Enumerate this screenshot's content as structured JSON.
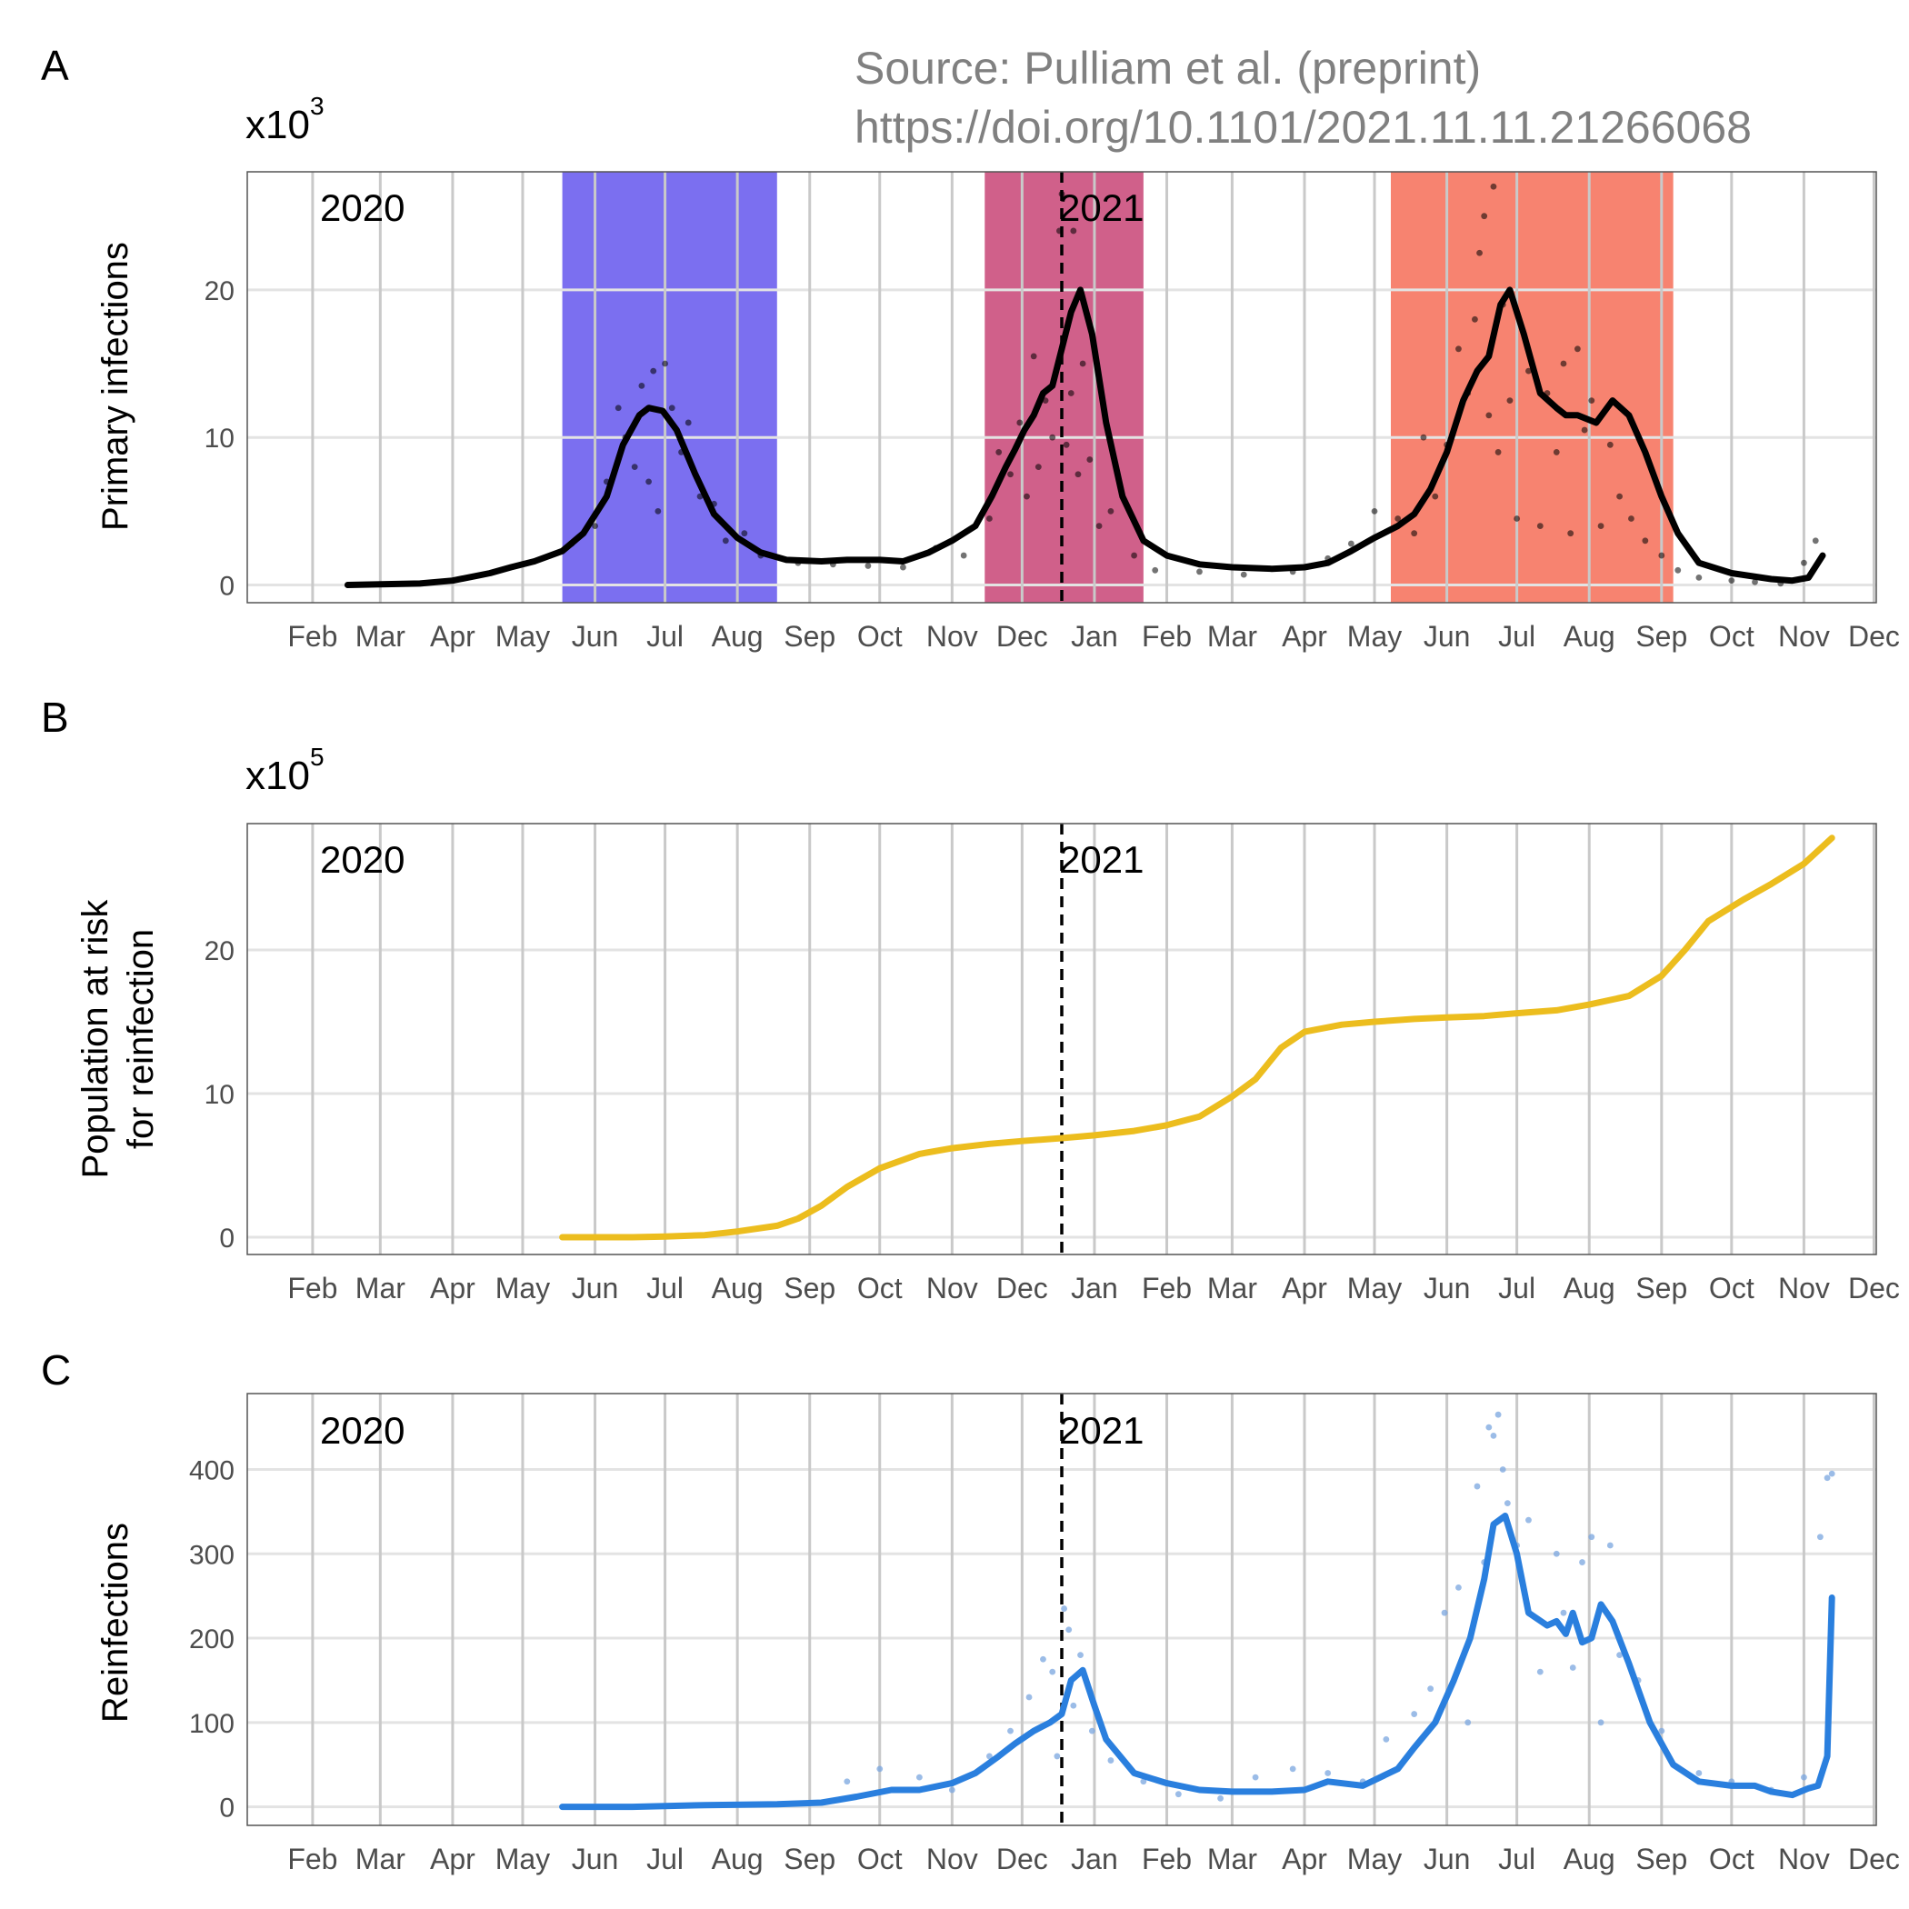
{
  "source": {
    "line1": "Source: Pulliam et al. (preprint)",
    "line2": "https://doi.org/10.1101/2021.11.11.21266068"
  },
  "year_labels": [
    "2020",
    "2021"
  ],
  "month_labels": [
    "Feb",
    "Mar",
    "Apr",
    "May",
    "Jun",
    "Jul",
    "Aug",
    "Sep",
    "Oct",
    "Nov",
    "Dec",
    "Jan",
    "Feb",
    "Mar",
    "Apr",
    "May",
    "Jun",
    "Jul",
    "Aug",
    "Sep",
    "Oct",
    "Nov",
    "Dec"
  ],
  "colors": {
    "wave1": "#7b6ff0",
    "wave2": "#d0608a",
    "wave3": "#f78370",
    "primary_line": "#000000",
    "at_risk_line": "#ecbd1e",
    "reinfection_line": "#2a7fde",
    "reinfection_points": "#7aa6df"
  },
  "chart_data": [
    {
      "panel": "A",
      "type": "line",
      "multiplier_base": "x10",
      "multiplier_exp": "3",
      "ylabel": "Primary infections",
      "xlim": [
        "2020-01-18",
        "2021-12-16"
      ],
      "ylim": [
        -1.2,
        28
      ],
      "yticks": [
        0,
        10,
        20
      ],
      "year_divider": "2021-01-01",
      "shaded_waves": [
        {
          "start": "2020-06-01",
          "end": "2020-09-01",
          "color": "#7b6ff0"
        },
        {
          "start": "2020-11-29",
          "end": "2021-02-05",
          "color": "#d0608a"
        },
        {
          "start": "2021-05-22",
          "end": "2021-09-20",
          "color": "#f78370"
        }
      ],
      "series": [
        {
          "style": "line",
          "x": [
            "2020-03-01",
            "2020-03-15",
            "2020-04-01",
            "2020-04-15",
            "2020-05-01",
            "2020-05-10",
            "2020-05-20",
            "2020-06-01",
            "2020-06-10",
            "2020-06-20",
            "2020-06-27",
            "2020-07-04",
            "2020-07-08",
            "2020-07-14",
            "2020-07-20",
            "2020-07-28",
            "2020-08-05",
            "2020-08-15",
            "2020-08-25",
            "2020-09-05",
            "2020-09-20",
            "2020-10-01",
            "2020-10-15",
            "2020-10-25",
            "2020-11-05",
            "2020-11-15",
            "2020-11-25",
            "2020-12-02",
            "2020-12-08",
            "2020-12-12",
            "2020-12-16",
            "2020-12-20",
            "2020-12-24",
            "2020-12-28",
            "2021-01-01",
            "2021-01-05",
            "2021-01-09",
            "2021-01-14",
            "2021-01-20",
            "2021-01-27",
            "2021-02-05",
            "2021-02-15",
            "2021-03-01",
            "2021-03-15",
            "2021-04-01",
            "2021-04-15",
            "2021-04-25",
            "2021-05-05",
            "2021-05-15",
            "2021-05-25",
            "2021-06-01",
            "2021-06-08",
            "2021-06-15",
            "2021-06-22",
            "2021-06-28",
            "2021-07-03",
            "2021-07-08",
            "2021-07-12",
            "2021-07-18",
            "2021-07-25",
            "2021-08-01",
            "2021-08-05",
            "2021-08-10",
            "2021-08-18",
            "2021-08-25",
            "2021-09-01",
            "2021-09-08",
            "2021-09-15",
            "2021-09-22",
            "2021-10-01",
            "2021-10-15",
            "2021-11-01",
            "2021-11-10",
            "2021-11-17",
            "2021-11-23"
          ],
          "y": [
            0.0,
            0.05,
            0.1,
            0.3,
            0.8,
            1.2,
            1.6,
            2.3,
            3.5,
            6.0,
            9.5,
            11.5,
            12.0,
            11.8,
            10.5,
            7.5,
            4.8,
            3.2,
            2.2,
            1.7,
            1.6,
            1.7,
            1.7,
            1.6,
            2.2,
            3.0,
            4.0,
            6.0,
            8.0,
            9.2,
            10.5,
            11.5,
            13.0,
            13.5,
            16.0,
            18.5,
            20.0,
            17.0,
            11.0,
            6.0,
            3.0,
            2.0,
            1.4,
            1.2,
            1.1,
            1.2,
            1.5,
            2.3,
            3.2,
            4.0,
            4.8,
            6.5,
            9.0,
            12.5,
            14.5,
            15.5,
            19.0,
            20.0,
            17.0,
            13.0,
            12.0,
            11.5,
            11.5,
            11.0,
            12.5,
            11.5,
            9.0,
            6.0,
            3.5,
            1.5,
            0.8,
            0.4,
            0.3,
            0.5,
            2.0
          ],
          "color": "#000000"
        },
        {
          "style": "points",
          "x": [
            "2020-05-20",
            "2020-06-05",
            "2020-06-15",
            "2020-06-20",
            "2020-06-25",
            "2020-06-28",
            "2020-07-02",
            "2020-07-05",
            "2020-07-08",
            "2020-07-10",
            "2020-07-12",
            "2020-07-15",
            "2020-07-18",
            "2020-07-22",
            "2020-07-25",
            "2020-07-30",
            "2020-08-05",
            "2020-08-10",
            "2020-08-18",
            "2020-08-25",
            "2020-09-10",
            "2020-09-25",
            "2020-10-10",
            "2020-10-25",
            "2020-11-08",
            "2020-11-20",
            "2020-12-01",
            "2020-12-05",
            "2020-12-10",
            "2020-12-14",
            "2020-12-17",
            "2020-12-20",
            "2020-12-22",
            "2020-12-25",
            "2020-12-28",
            "2020-12-31",
            "2021-01-01",
            "2021-01-03",
            "2021-01-05",
            "2021-01-06",
            "2021-01-08",
            "2021-01-10",
            "2021-01-13",
            "2021-01-17",
            "2021-01-22",
            "2021-02-01",
            "2021-02-10",
            "2021-03-01",
            "2021-03-20",
            "2021-04-10",
            "2021-04-25",
            "2021-05-05",
            "2021-05-15",
            "2021-05-25",
            "2021-06-01",
            "2021-06-05",
            "2021-06-10",
            "2021-06-15",
            "2021-06-20",
            "2021-06-24",
            "2021-06-27",
            "2021-06-29",
            "2021-07-01",
            "2021-07-03",
            "2021-07-05",
            "2021-07-07",
            "2021-07-09",
            "2021-07-12",
            "2021-07-15",
            "2021-07-20",
            "2021-07-25",
            "2021-07-28",
            "2021-08-01",
            "2021-08-04",
            "2021-08-07",
            "2021-08-10",
            "2021-08-13",
            "2021-08-16",
            "2021-08-20",
            "2021-08-24",
            "2021-08-28",
            "2021-09-02",
            "2021-09-08",
            "2021-09-15",
            "2021-09-22",
            "2021-10-01",
            "2021-10-15",
            "2021-10-25",
            "2021-11-05",
            "2021-11-15",
            "2021-11-20"
          ],
          "y": [
            1.6,
            2.8,
            4.0,
            7.0,
            12.0,
            10.0,
            8.0,
            13.5,
            7.0,
            14.5,
            5.0,
            15.0,
            12.0,
            9.0,
            11.0,
            6.0,
            5.5,
            3.0,
            3.5,
            2.0,
            1.5,
            1.4,
            1.3,
            1.2,
            2.5,
            2.0,
            4.5,
            9.0,
            7.5,
            11.0,
            6.0,
            15.5,
            8.0,
            12.5,
            10.0,
            24.0,
            26.5,
            9.5,
            13.0,
            24.0,
            7.5,
            15.0,
            8.5,
            4.0,
            5.0,
            2.0,
            1.0,
            0.9,
            0.7,
            0.9,
            1.8,
            2.8,
            5.0,
            4.5,
            3.5,
            10.0,
            6.0,
            9.5,
            16.0,
            13.0,
            18.0,
            22.5,
            25.0,
            11.5,
            27.0,
            9.0,
            19.0,
            12.5,
            4.5,
            14.5,
            4.0,
            13.0,
            9.0,
            15.0,
            3.5,
            16.0,
            10.5,
            12.5,
            4.0,
            9.5,
            6.0,
            4.5,
            3.0,
            2.0,
            1.0,
            0.5,
            0.3,
            0.2,
            0.1,
            1.5,
            3.0
          ],
          "color": "#000000"
        }
      ]
    },
    {
      "panel": "B",
      "type": "line",
      "multiplier_base": "x10",
      "multiplier_exp": "5",
      "ylabel_line1": "Population at risk",
      "ylabel_line2": "for reinfection",
      "xlim": [
        "2020-01-18",
        "2021-12-16"
      ],
      "ylim": [
        -1.2,
        28.8
      ],
      "yticks": [
        0,
        10,
        20
      ],
      "year_divider": "2021-01-01",
      "series": [
        {
          "style": "line",
          "x": [
            "2020-06-01",
            "2020-07-01",
            "2020-07-15",
            "2020-08-01",
            "2020-08-15",
            "2020-09-01",
            "2020-09-10",
            "2020-09-20",
            "2020-10-01",
            "2020-10-15",
            "2020-11-01",
            "2020-11-15",
            "2020-12-01",
            "2020-12-15",
            "2021-01-01",
            "2021-01-15",
            "2021-02-01",
            "2021-02-15",
            "2021-03-01",
            "2021-03-15",
            "2021-03-25",
            "2021-04-05",
            "2021-04-15",
            "2021-05-01",
            "2021-05-15",
            "2021-06-01",
            "2021-06-15",
            "2021-07-01",
            "2021-07-15",
            "2021-08-01",
            "2021-08-15",
            "2021-09-01",
            "2021-09-15",
            "2021-09-25",
            "2021-10-05",
            "2021-10-20",
            "2021-11-01",
            "2021-11-15",
            "2021-11-27"
          ],
          "y": [
            0.0,
            0.0,
            0.05,
            0.15,
            0.4,
            0.8,
            1.3,
            2.2,
            3.5,
            4.8,
            5.8,
            6.2,
            6.5,
            6.7,
            6.9,
            7.1,
            7.4,
            7.8,
            8.4,
            9.8,
            11.0,
            13.2,
            14.3,
            14.8,
            15.0,
            15.2,
            15.3,
            15.4,
            15.6,
            15.8,
            16.2,
            16.8,
            18.2,
            20.0,
            22.0,
            23.5,
            24.6,
            26.0,
            27.8
          ],
          "color": "#ecbd1e"
        }
      ]
    },
    {
      "panel": "C",
      "type": "line",
      "ylabel": "Reinfections",
      "xlim": [
        "2020-01-18",
        "2021-12-16"
      ],
      "ylim": [
        -22,
        490
      ],
      "yticks": [
        0,
        100,
        200,
        300,
        400
      ],
      "year_divider": "2021-01-01",
      "series": [
        {
          "style": "line",
          "x": [
            "2020-06-01",
            "2020-07-01",
            "2020-08-01",
            "2020-09-01",
            "2020-09-20",
            "2020-10-05",
            "2020-10-20",
            "2020-11-01",
            "2020-11-15",
            "2020-11-25",
            "2020-12-05",
            "2020-12-12",
            "2020-12-20",
            "2020-12-27",
            "2021-01-01",
            "2021-01-05",
            "2021-01-10",
            "2021-01-15",
            "2021-01-20",
            "2021-02-01",
            "2021-02-15",
            "2021-03-01",
            "2021-03-15",
            "2021-04-01",
            "2021-04-15",
            "2021-04-25",
            "2021-05-10",
            "2021-05-25",
            "2021-06-01",
            "2021-06-10",
            "2021-06-18",
            "2021-06-25",
            "2021-07-01",
            "2021-07-05",
            "2021-07-10",
            "2021-07-15",
            "2021-07-20",
            "2021-07-28",
            "2021-08-01",
            "2021-08-05",
            "2021-08-08",
            "2021-08-12",
            "2021-08-16",
            "2021-08-20",
            "2021-08-25",
            "2021-09-01",
            "2021-09-10",
            "2021-09-20",
            "2021-10-01",
            "2021-10-15",
            "2021-10-25",
            "2021-11-01",
            "2021-11-10",
            "2021-11-17",
            "2021-11-21",
            "2021-11-25",
            "2021-11-27"
          ],
          "y": [
            0,
            0,
            2,
            3,
            5,
            12,
            20,
            20,
            28,
            40,
            60,
            75,
            90,
            100,
            110,
            150,
            162,
            120,
            80,
            40,
            28,
            20,
            18,
            18,
            20,
            30,
            25,
            45,
            70,
            100,
            150,
            200,
            270,
            335,
            345,
            300,
            230,
            215,
            220,
            205,
            230,
            195,
            200,
            240,
            220,
            170,
            100,
            50,
            30,
            25,
            25,
            18,
            14,
            22,
            25,
            60,
            248
          ],
          "color": "#2a7fde"
        },
        {
          "style": "points",
          "x": [
            "2020-10-01",
            "2020-10-15",
            "2020-11-01",
            "2020-11-15",
            "2020-12-01",
            "2020-12-10",
            "2020-12-18",
            "2020-12-24",
            "2020-12-28",
            "2020-12-30",
            "2021-01-02",
            "2021-01-04",
            "2021-01-06",
            "2021-01-09",
            "2021-01-14",
            "2021-01-22",
            "2021-02-05",
            "2021-02-20",
            "2021-03-10",
            "2021-03-25",
            "2021-04-10",
            "2021-04-25",
            "2021-05-10",
            "2021-05-20",
            "2021-06-01",
            "2021-06-08",
            "2021-06-14",
            "2021-06-20",
            "2021-06-24",
            "2021-06-28",
            "2021-07-01",
            "2021-07-03",
            "2021-07-05",
            "2021-07-07",
            "2021-07-09",
            "2021-07-11",
            "2021-07-15",
            "2021-07-20",
            "2021-07-25",
            "2021-08-01",
            "2021-08-04",
            "2021-08-08",
            "2021-08-12",
            "2021-08-16",
            "2021-08-20",
            "2021-08-24",
            "2021-08-28",
            "2021-09-05",
            "2021-09-15",
            "2021-10-01",
            "2021-10-15",
            "2021-11-01",
            "2021-11-15",
            "2021-11-22",
            "2021-11-25",
            "2021-11-27"
          ],
          "y": [
            30,
            45,
            35,
            20,
            60,
            90,
            130,
            175,
            160,
            60,
            235,
            210,
            120,
            180,
            90,
            55,
            30,
            15,
            10,
            35,
            45,
            40,
            30,
            80,
            110,
            140,
            230,
            260,
            100,
            380,
            290,
            450,
            440,
            465,
            400,
            360,
            310,
            340,
            160,
            300,
            230,
            165,
            290,
            320,
            100,
            310,
            180,
            150,
            90,
            40,
            30,
            20,
            35,
            320,
            390,
            395
          ],
          "color": "#7aa6df"
        }
      ]
    }
  ]
}
